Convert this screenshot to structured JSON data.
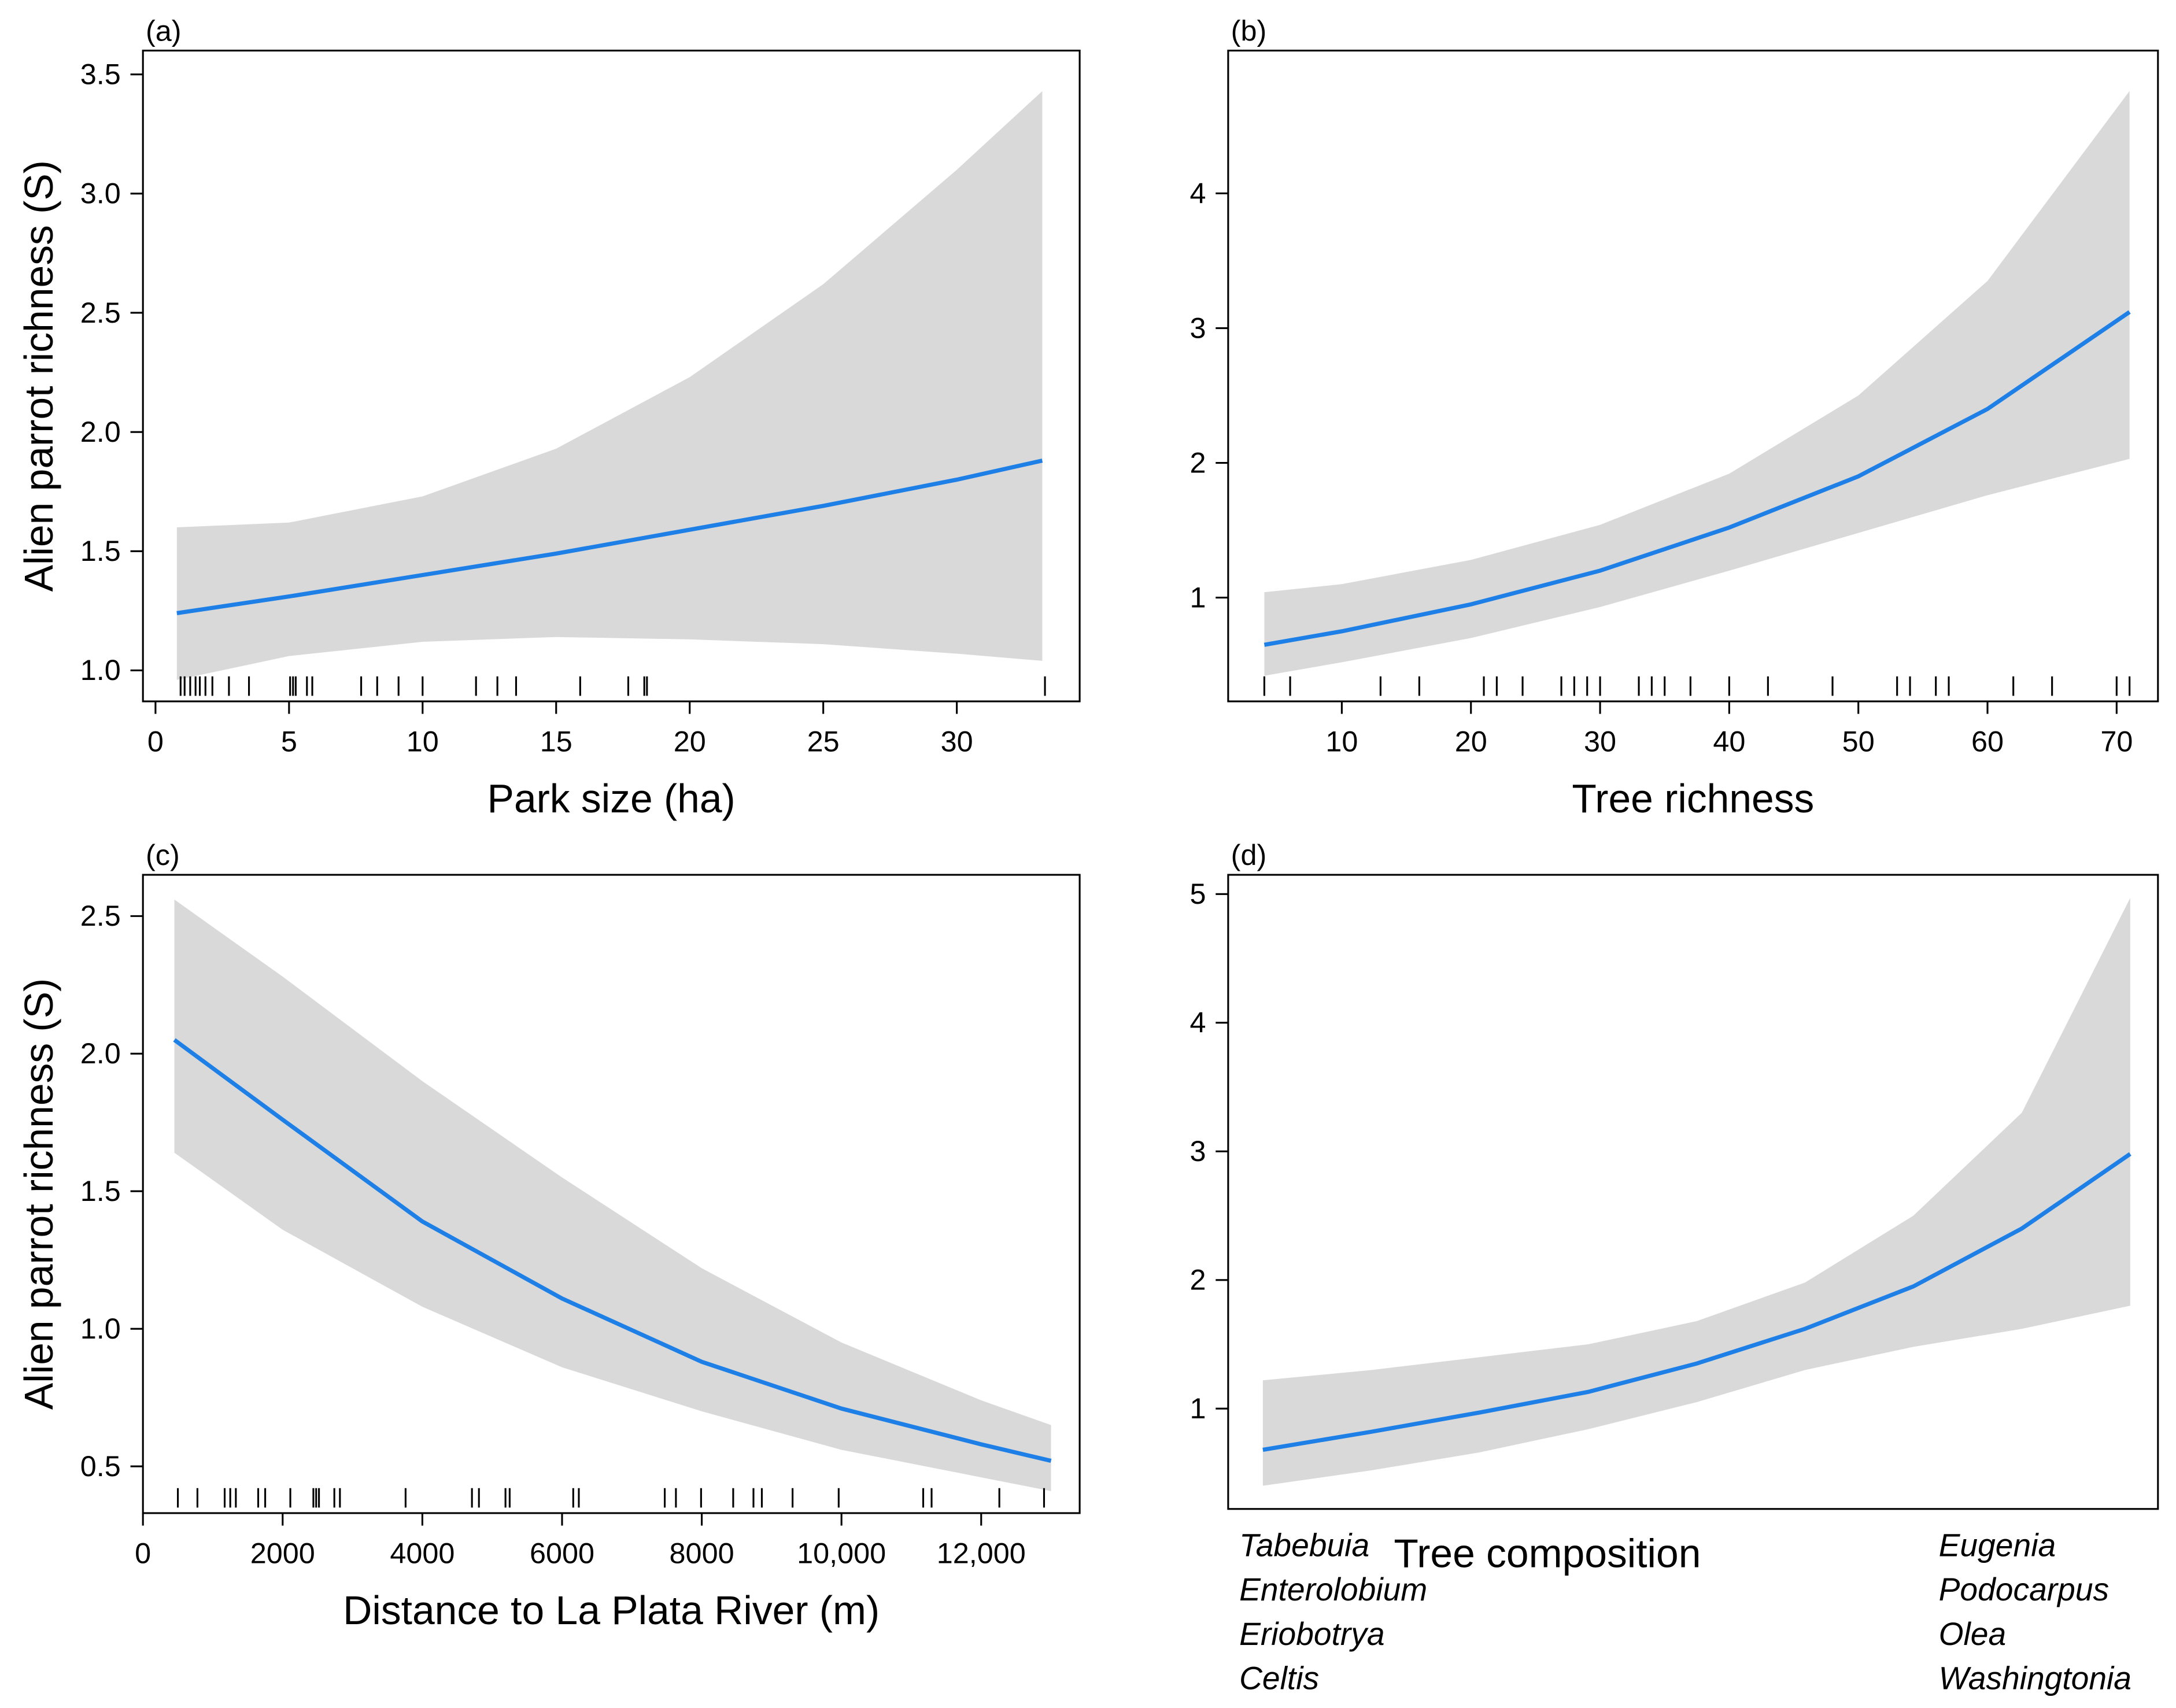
{
  "chart_data": [
    {
      "type": "line",
      "panel_label": "(a)",
      "ylabel": "Alien parrot richness (S)",
      "xlabel": "Park size (ha)",
      "x": [
        0.8,
        5,
        10,
        15,
        20,
        25,
        30,
        33.2
      ],
      "line": {
        "color": "#1e80e6",
        "values": [
          1.24,
          1.31,
          1.4,
          1.49,
          1.59,
          1.69,
          1.8,
          1.88
        ]
      },
      "band": {
        "color": "#d9d9d9",
        "lower": [
          0.96,
          1.06,
          1.12,
          1.14,
          1.13,
          1.11,
          1.07,
          1.04
        ],
        "upper": [
          1.6,
          1.62,
          1.73,
          1.93,
          2.23,
          2.62,
          3.1,
          3.43
        ]
      },
      "rug": [
        0.94,
        1.09,
        1.3,
        1.5,
        1.66,
        1.87,
        2.13,
        2.75,
        3.5,
        5.04,
        5.15,
        5.25,
        5.67,
        5.87,
        7.7,
        8.3,
        9.1,
        10.0,
        12.0,
        12.8,
        13.5,
        15.9,
        17.7,
        18.3,
        18.4,
        33.3
      ],
      "xlim": [
        -0.47,
        34.6
      ],
      "ylim": [
        0.87,
        3.6
      ],
      "xticks": [
        0,
        5,
        10,
        15,
        20,
        25,
        30
      ],
      "yticks": [
        {
          "value": 1,
          "label": "1.0"
        },
        1.5,
        {
          "value": 2,
          "label": "2.0"
        },
        2.5,
        {
          "value": 3,
          "label": "3.0"
        },
        3.5
      ],
      "grid": false
    },
    {
      "type": "line",
      "panel_label": "(b)",
      "xlabel": "Tree richness",
      "x": [
        4,
        10,
        20,
        30,
        40,
        50,
        60,
        71
      ],
      "line": {
        "color": "#1e80e6",
        "values": [
          0.65,
          0.75,
          0.95,
          1.2,
          1.52,
          1.9,
          2.4,
          3.12
        ]
      },
      "band": {
        "color": "#d9d9d9",
        "lower": [
          0.42,
          0.52,
          0.7,
          0.93,
          1.2,
          1.48,
          1.76,
          2.03
        ],
        "upper": [
          1.04,
          1.1,
          1.28,
          1.54,
          1.92,
          2.5,
          3.35,
          4.76
        ]
      },
      "rug": [
        4,
        6,
        13,
        16,
        21,
        22,
        24,
        27,
        28,
        29,
        30,
        33,
        34,
        35,
        37,
        40,
        43,
        48,
        53,
        54,
        56,
        57,
        62,
        65,
        70,
        71
      ],
      "xlim": [
        1.2,
        73.2
      ],
      "ylim": [
        0.23,
        5.06
      ],
      "xticks": [
        10,
        20,
        30,
        40,
        50,
        60,
        70
      ],
      "yticks": [
        1,
        2,
        3,
        4
      ],
      "grid": false
    },
    {
      "type": "line",
      "panel_label": "(c)",
      "ylabel": "Alien parrot richness (S)",
      "xlabel": "Distance to La Plata River (m)",
      "x": [
        450,
        2000,
        4000,
        6000,
        8000,
        10000,
        12000,
        13000
      ],
      "line": {
        "color": "#1e80e6",
        "values": [
          2.05,
          1.76,
          1.39,
          1.11,
          0.88,
          0.71,
          0.58,
          0.52
        ]
      },
      "band": {
        "color": "#d9d9d9",
        "lower": [
          1.64,
          1.36,
          1.08,
          0.86,
          0.7,
          0.56,
          0.46,
          0.41
        ],
        "upper": [
          2.56,
          2.28,
          1.9,
          1.55,
          1.22,
          0.95,
          0.74,
          0.65
        ]
      },
      "rug": [
        500,
        780,
        1170,
        1250,
        1330,
        1650,
        1750,
        2110,
        2440,
        2480,
        2520,
        2740,
        2820,
        3760,
        4710,
        4810,
        5190,
        5250,
        6160,
        6240,
        7470,
        7630,
        7990,
        8450,
        8740,
        8860,
        9300,
        9960,
        11170,
        11290,
        12260,
        12900
      ],
      "xlim": [
        0,
        13410
      ],
      "ylim": [
        0.33,
        2.65
      ],
      "xticks": [
        0,
        2000,
        4000,
        6000,
        8000,
        {
          "value": 10000,
          "label": "10,000"
        },
        {
          "value": 12000,
          "label": "12,000"
        }
      ],
      "yticks": [
        0.5,
        {
          "value": 1,
          "label": "1.0"
        },
        1.5,
        {
          "value": 2,
          "label": "2.0"
        },
        2.5
      ],
      "grid": false
    },
    {
      "type": "line",
      "panel_label": "(d)",
      "xlabel": "Tree composition",
      "x_low_labels": [
        "Tabebuia",
        "Enterolobium",
        "Eriobotrya",
        "Celtis"
      ],
      "x_high_labels": [
        "Eugenia",
        "Podocarpus",
        "Olea",
        "Washingtonia"
      ],
      "line": {
        "color": "#1e80e6",
        "values": [
          0.68,
          0.82,
          0.97,
          1.13,
          1.35,
          1.62,
          1.95,
          2.4,
          2.98
        ]
      },
      "band": {
        "color": "#d9d9d9",
        "lower": [
          0.4,
          0.52,
          0.66,
          0.84,
          1.05,
          1.3,
          1.48,
          1.62,
          1.8
        ],
        "upper": [
          1.22,
          1.3,
          1.4,
          1.5,
          1.68,
          1.98,
          2.5,
          3.3,
          4.97
        ]
      },
      "ylim": [
        0.22,
        5.15
      ],
      "yticks": [
        1,
        2,
        3,
        4,
        5
      ],
      "grid": false
    }
  ]
}
